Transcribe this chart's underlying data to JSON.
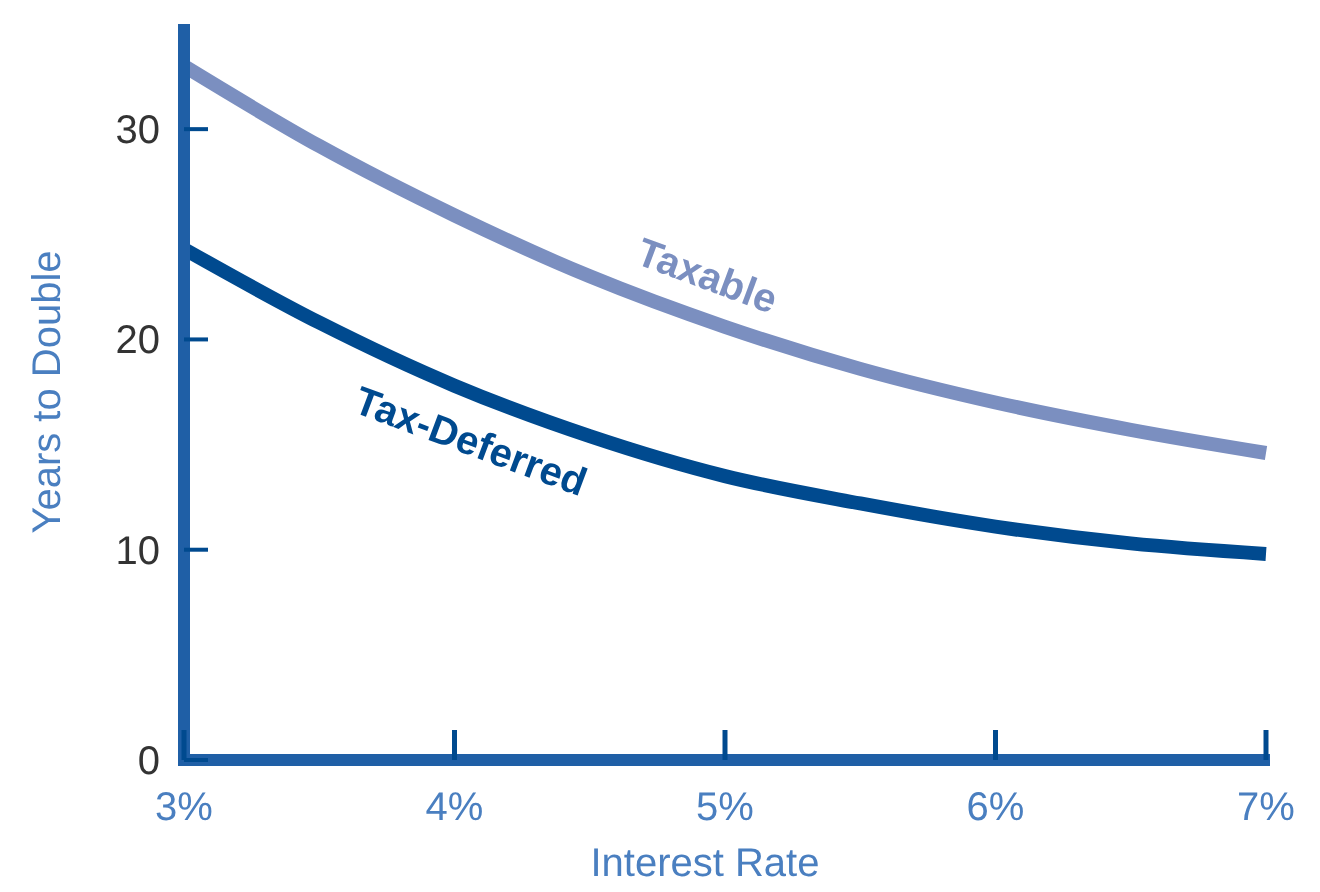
{
  "chart_data": {
    "type": "line",
    "xlabel": "Interest Rate",
    "ylabel": "Years to Double",
    "x": [
      3,
      3.5,
      4,
      4.5,
      5,
      5.5,
      6,
      6.5,
      7
    ],
    "xlim": [
      3,
      7
    ],
    "xticks": [
      {
        "value": 3,
        "label": "3%"
      },
      {
        "value": 4,
        "label": "4%"
      },
      {
        "value": 5,
        "label": "5%"
      },
      {
        "value": 6,
        "label": "6%"
      },
      {
        "value": 7,
        "label": "7%"
      }
    ],
    "ylim": [
      0,
      35
    ],
    "yticks": [
      0,
      10,
      20,
      30
    ],
    "grid": false,
    "marker": "none",
    "line_style": "solid",
    "series": [
      {
        "name": "Taxable",
        "color": "#7b8fc0",
        "values": [
          33,
          29.2,
          25.9,
          23,
          20.6,
          18.6,
          17,
          15.7,
          14.6
        ]
      },
      {
        "name": "Tax-Deferred",
        "color": "#004a8f",
        "values": [
          24.3,
          20.8,
          17.8,
          15.4,
          13.5,
          12.2,
          11.1,
          10.3,
          9.8
        ]
      }
    ]
  }
}
